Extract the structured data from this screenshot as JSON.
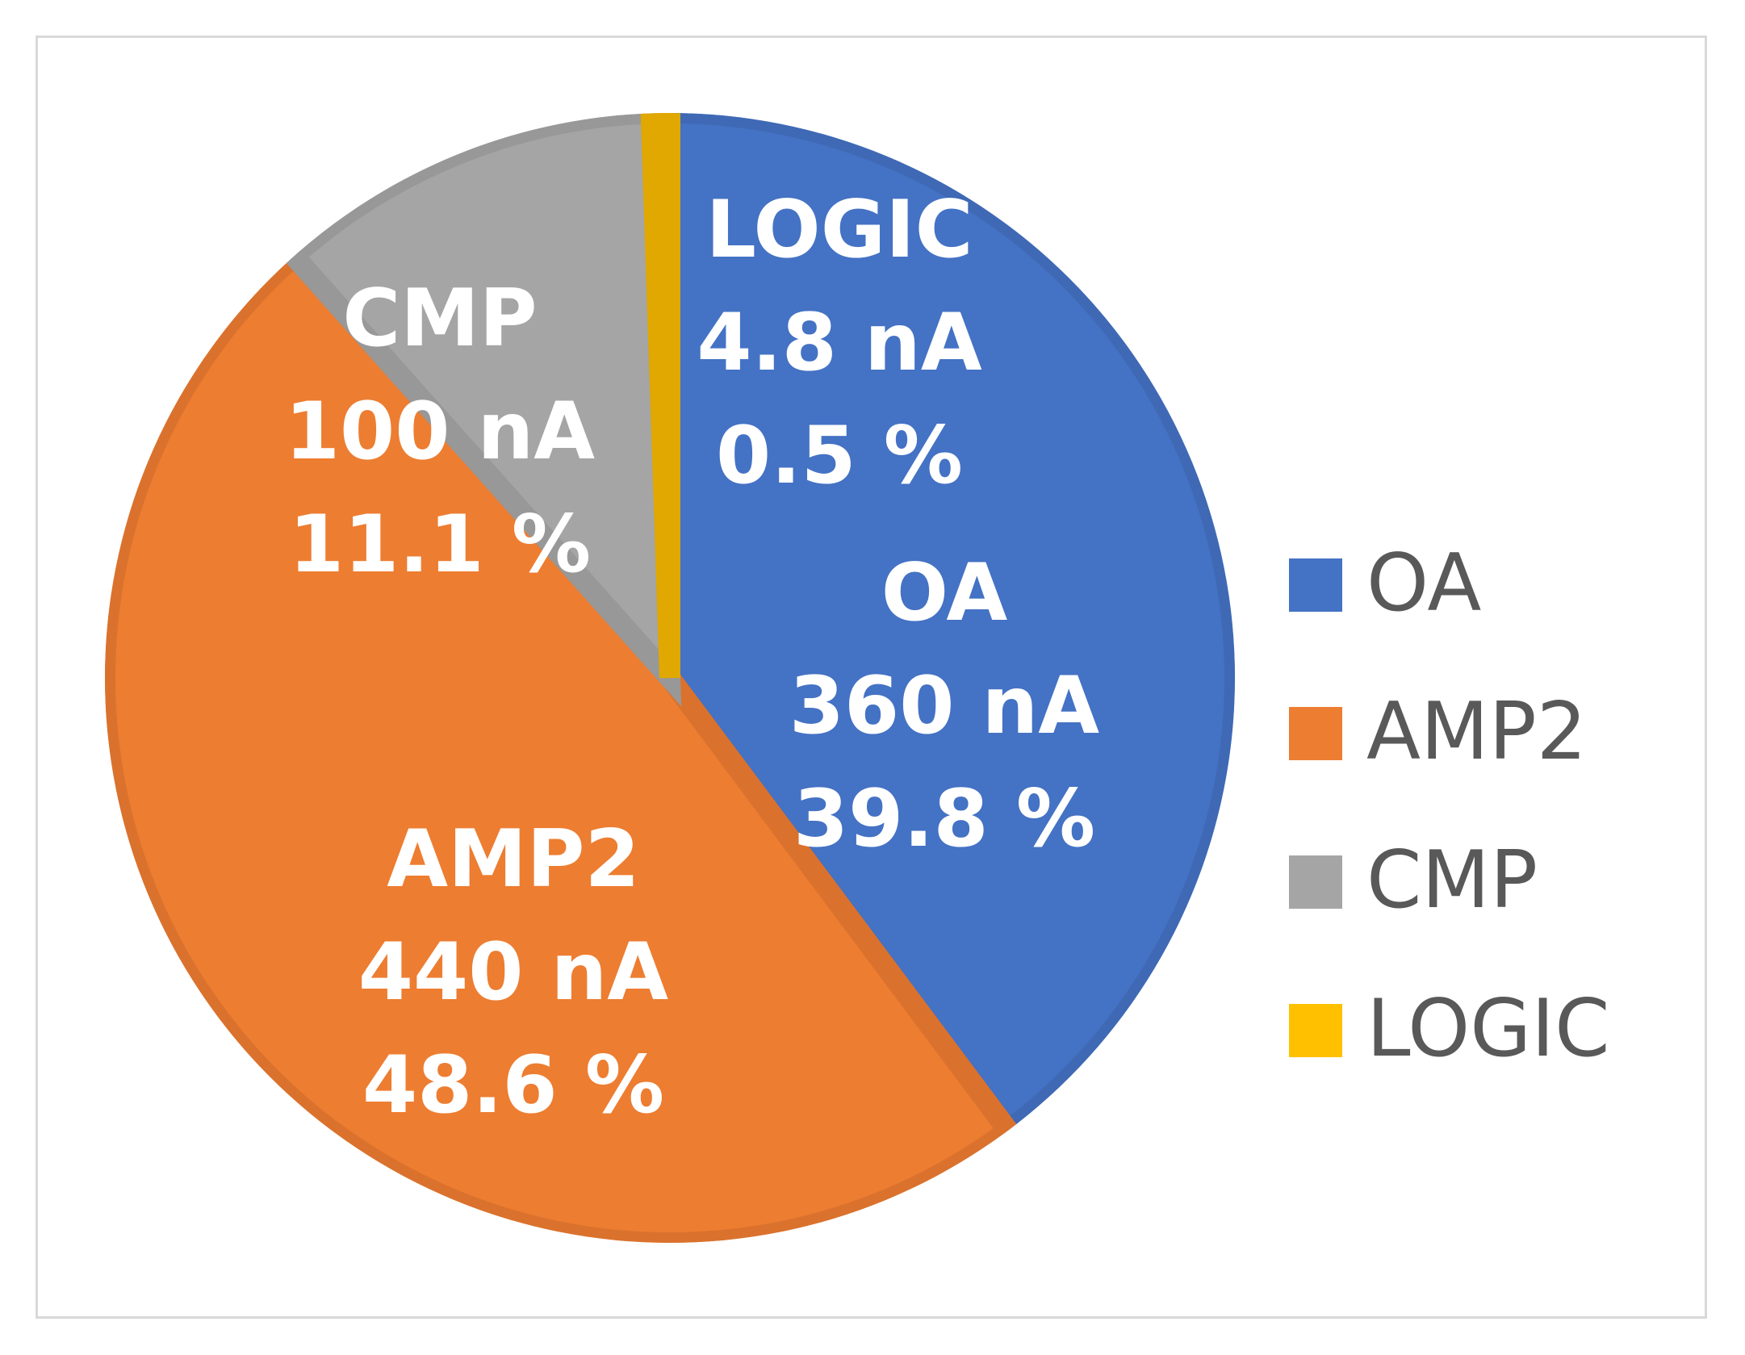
{
  "chart_data": {
    "type": "pie",
    "title": "",
    "unit": "nA",
    "start_angle_deg": 0,
    "direction": "clockwise",
    "slices": [
      {
        "name": "OA",
        "value": 360,
        "value_label": "360 nA",
        "percent_label": "39.8 %",
        "color": "#4472C4",
        "edge_color": "#3F69B5"
      },
      {
        "name": "AMP2",
        "value": 440,
        "value_label": "440 nA",
        "percent_label": "48.6 %",
        "color": "#ED7D31",
        "edge_color": "#DA722D"
      },
      {
        "name": "CMP",
        "value": 100,
        "value_label": "100 nA",
        "percent_label": "11.1 %",
        "color": "#A5A5A5",
        "edge_color": "#989898"
      },
      {
        "name": "LOGIC",
        "value": 4.8,
        "value_label": "4.8 nA",
        "percent_label": "0.5 %",
        "color": "#FFC000",
        "edge_color": "#E0A800"
      }
    ],
    "legend": {
      "position": "right",
      "entries": [
        "OA",
        "AMP2",
        "CMP",
        "LOGIC"
      ]
    }
  }
}
